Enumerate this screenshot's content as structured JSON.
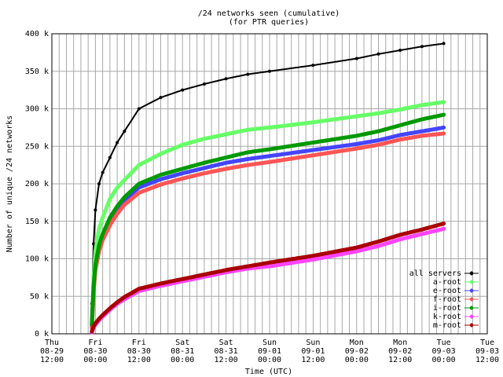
{
  "chart_data": {
    "type": "line",
    "title": "/24 networks seen (cumulative)",
    "subtitle": "(for PTR queries)",
    "xlabel": "Time (UTC)",
    "ylabel": "Number of unique /24 networks",
    "grid": true,
    "legend_position": "bottom-right",
    "xlim": [
      "08-29 12:00",
      "09-03 12:00"
    ],
    "ylim": [
      0,
      400000
    ],
    "x_ticks": [
      {
        "day": "Thu",
        "date": "08-29",
        "time": "12:00"
      },
      {
        "day": "Fri",
        "date": "08-30",
        "time": "00:00"
      },
      {
        "day": "Fri",
        "date": "08-30",
        "time": "12:00"
      },
      {
        "day": "Sat",
        "date": "08-31",
        "time": "00:00"
      },
      {
        "day": "Sat",
        "date": "08-31",
        "time": "12:00"
      },
      {
        "day": "Sun",
        "date": "09-01",
        "time": "00:00"
      },
      {
        "day": "Sun",
        "date": "09-01",
        "time": "12:00"
      },
      {
        "day": "Mon",
        "date": "09-02",
        "time": "00:00"
      },
      {
        "day": "Mon",
        "date": "09-02",
        "time": "12:00"
      },
      {
        "day": "Tue",
        "date": "09-03",
        "time": "00:00"
      },
      {
        "day": "Tue",
        "date": "09-03",
        "time": "12:00"
      }
    ],
    "y_ticks": [
      "0 k",
      "50 k",
      "100 k",
      "150 k",
      "200 k",
      "250 k",
      "300 k",
      "350 k",
      "400 k"
    ],
    "x": [
      "08-29 23:00",
      "08-29 23:30",
      "08-30 00:00",
      "08-30 01:00",
      "08-30 02:00",
      "08-30 04:00",
      "08-30 06:00",
      "08-30 08:00",
      "08-30 12:00",
      "08-30 18:00",
      "08-31 00:00",
      "08-31 06:00",
      "08-31 12:00",
      "08-31 18:00",
      "09-01 00:00",
      "09-01 12:00",
      "09-02 00:00",
      "09-02 06:00",
      "09-02 12:00",
      "09-02 18:00",
      "09-03 00:00"
    ],
    "series": [
      {
        "name": "all servers",
        "color": "#000000",
        "values": [
          40000,
          120000,
          165000,
          200000,
          215000,
          235000,
          255000,
          270000,
          300000,
          315000,
          325000,
          333000,
          340000,
          346000,
          350000,
          358000,
          367000,
          373000,
          378000,
          383000,
          387000
        ]
      },
      {
        "name": "a-root",
        "color": "#66ff66",
        "values": [
          15000,
          75000,
          110000,
          140000,
          155000,
          180000,
          195000,
          205000,
          225000,
          240000,
          252000,
          260000,
          266000,
          272000,
          275000,
          282000,
          290000,
          294000,
          299000,
          305000,
          309000
        ]
      },
      {
        "name": "e-root",
        "color": "#4444ff",
        "values": [
          10000,
          60000,
          90000,
          115000,
          130000,
          150000,
          165000,
          178000,
          195000,
          206000,
          214000,
          221000,
          228000,
          233000,
          237000,
          245000,
          253000,
          258000,
          265000,
          270000,
          275000
        ]
      },
      {
        "name": "f-root",
        "color": "#ff5555",
        "values": [
          8000,
          55000,
          85000,
          110000,
          125000,
          145000,
          160000,
          172000,
          188000,
          199000,
          207000,
          214000,
          220000,
          225000,
          229000,
          238000,
          247000,
          252000,
          259000,
          264000,
          267000
        ]
      },
      {
        "name": "i-root",
        "color": "#009900",
        "values": [
          12000,
          63000,
          92000,
          118000,
          133000,
          155000,
          170000,
          182000,
          200000,
          212000,
          220000,
          228000,
          235000,
          242000,
          246000,
          255000,
          264000,
          270000,
          278000,
          286000,
          292000
        ]
      },
      {
        "name": "k-root",
        "color": "#ff44ff",
        "values": [
          2000,
          8000,
          12000,
          18000,
          23000,
          32000,
          40000,
          46000,
          57000,
          64000,
          70000,
          76000,
          82000,
          87000,
          90000,
          99000,
          110000,
          117000,
          126000,
          133000,
          140000
        ]
      },
      {
        "name": "m-root",
        "color": "#aa0000",
        "values": [
          3000,
          10000,
          14000,
          20000,
          25000,
          34000,
          42000,
          49000,
          60000,
          67000,
          73000,
          79000,
          85000,
          90000,
          95000,
          104000,
          115000,
          123000,
          132000,
          139000,
          147000
        ]
      }
    ]
  }
}
